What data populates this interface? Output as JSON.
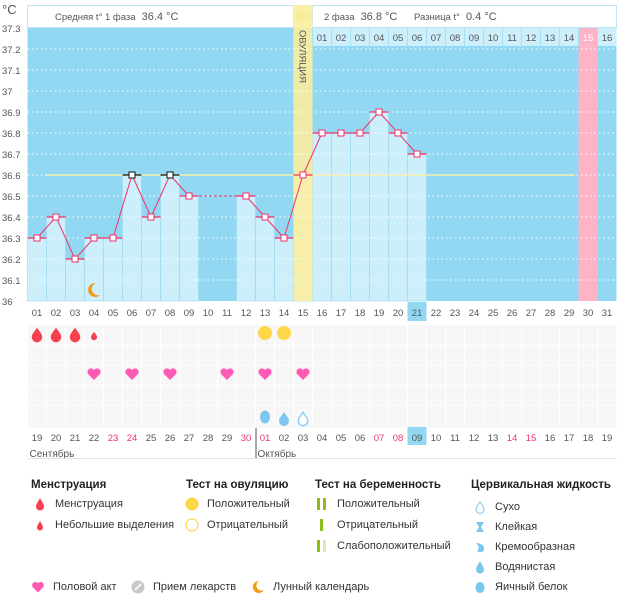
{
  "header": {
    "unit": "°C",
    "phase1_label": "Средняя t° 1 фаза",
    "phase1_value": "36.4 °C",
    "phase2_label": "2 фаза",
    "phase2_value": "36.8 °C",
    "diff_label": "Разница t°",
    "diff_value": "0.4 °C",
    "ovulation_label": "ОВУЛЯЦИЯ"
  },
  "chart_data": {
    "type": "line",
    "ylabel": "°C",
    "ylim": [
      36,
      37.3
    ],
    "y_ticks": [
      "36",
      "36.1",
      "36.2",
      "36.3",
      "36.4",
      "36.5",
      "36.6",
      "36.7",
      "36.8",
      "36.9",
      "37",
      "37.1",
      "37.2",
      "37.3"
    ],
    "cycle_days": [
      "01",
      "02",
      "03",
      "04",
      "05",
      "06",
      "07",
      "08",
      "09",
      "10",
      "11",
      "12",
      "13",
      "14",
      "15",
      "16",
      "17",
      "18",
      "19",
      "20",
      "21",
      "22",
      "23",
      "24",
      "25",
      "26",
      "27",
      "28",
      "29",
      "30",
      "31"
    ],
    "temperatures": [
      36.3,
      36.4,
      36.2,
      36.3,
      36.3,
      36.6,
      36.4,
      36.6,
      36.5,
      null,
      null,
      36.5,
      36.4,
      36.3,
      36.6,
      36.8,
      36.8,
      36.8,
      36.9,
      36.8,
      36.7,
      null,
      null,
      null,
      null,
      null,
      null,
      null,
      null,
      null,
      null
    ],
    "marked_high_days": [
      6,
      8
    ],
    "coverline": 36.6,
    "ovulation_day": 15,
    "expected_period_day": 30,
    "current_day": 21,
    "post_ovulation_labels": [
      "01",
      "02",
      "03",
      "04",
      "05",
      "06",
      "07",
      "08",
      "09",
      "10",
      "11",
      "12",
      "13",
      "14",
      "15",
      "16"
    ],
    "grid": true,
    "colors": {
      "background": "#93d8f2",
      "bar": "#cdeefb",
      "line": "#f0336a",
      "ovulation": "#fbeea0",
      "period": "#ffb3c6",
      "coverline": "#f5efb0"
    }
  },
  "calendar": {
    "dates": [
      "19",
      "20",
      "21",
      "22",
      "23",
      "24",
      "25",
      "26",
      "27",
      "28",
      "29",
      "30",
      "01",
      "02",
      "03",
      "04",
      "05",
      "06",
      "07",
      "08",
      "09",
      "10",
      "11",
      "12",
      "13",
      "14",
      "15",
      "16",
      "17",
      "18",
      "19"
    ],
    "weekend_indices": [
      4,
      5,
      11,
      12,
      18,
      19,
      25,
      26
    ],
    "today_index": 20,
    "months": [
      {
        "label": "Сентябрь",
        "start_index": 0
      },
      {
        "label": "Октябрь",
        "start_index": 12
      }
    ],
    "menstruation": {
      "heavy": [
        1,
        2,
        3
      ],
      "light": [
        4
      ]
    },
    "ovulation_test_positive": [
      13,
      14
    ],
    "intercourse": [
      4,
      6,
      8,
      11,
      13,
      15
    ],
    "cervical": [
      {
        "day": 13,
        "type": "egg-white"
      },
      {
        "day": 14,
        "type": "watery"
      },
      {
        "day": 15,
        "type": "dry"
      }
    ],
    "moon_days": [
      4
    ]
  },
  "legend": {
    "menstruation": {
      "title": "Менструация",
      "items": [
        "Менструация",
        "Небольшие выделения"
      ]
    },
    "ovulation_test": {
      "title": "Тест на овуляцию",
      "items": [
        "Положительный",
        "Отрицательный"
      ]
    },
    "pregnancy_test": {
      "title": "Тест на беременность",
      "items": [
        "Положительный",
        "Отрицательный",
        "Слабоположительный"
      ]
    },
    "cervical": {
      "title": "Цервикальная жидкость",
      "items": [
        "Сухо",
        "Клейкая",
        "Кремообразная",
        "Водянистая",
        "Яичный белок"
      ]
    },
    "other": [
      "Половой акт",
      "Прием лекарств",
      "Лунный календарь"
    ]
  }
}
